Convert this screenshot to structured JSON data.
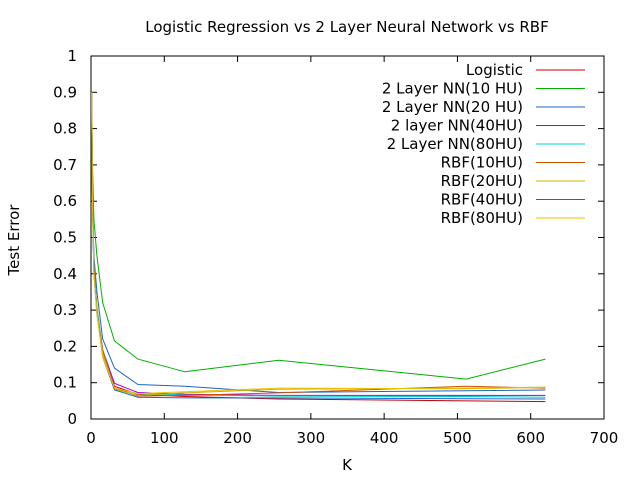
{
  "chart_data": {
    "type": "line",
    "title": "Logistic Regression vs 2 Layer Neural Network vs RBF",
    "xlabel": "K",
    "ylabel": "Test Error",
    "xlim": [
      0,
      700
    ],
    "ylim": [
      0,
      1
    ],
    "xticks": [
      0,
      100,
      200,
      300,
      400,
      500,
      600,
      700
    ],
    "yticks": [
      0,
      0.1,
      0.2,
      0.3,
      0.4,
      0.5,
      0.6,
      0.7,
      0.8,
      0.9,
      1
    ],
    "ytick_labels": [
      "0",
      "0.1",
      "0.2",
      "0.3",
      "0.4",
      "0.5",
      "0.6",
      "0.7",
      "0.8",
      "0.9",
      "1"
    ],
    "grid": false,
    "legend_position": "top-right",
    "x": [
      1,
      2,
      4,
      8,
      16,
      32,
      64,
      128,
      256,
      512,
      620
    ],
    "series": [
      {
        "name": "Logistic",
        "color": "#cc0000",
        "values": [
          0.9,
          0.62,
          0.43,
          0.3,
          0.18,
          0.09,
          0.068,
          0.062,
          0.055,
          0.05,
          0.048
        ]
      },
      {
        "name": "2 Layer NN(10 HU)",
        "color": "#00b000",
        "values": [
          0.9,
          0.7,
          0.55,
          0.45,
          0.32,
          0.215,
          0.165,
          0.13,
          0.162,
          0.11,
          0.165
        ]
      },
      {
        "name": "2 Layer NN(20 HU)",
        "color": "#1a66cc",
        "values": [
          0.9,
          0.6,
          0.45,
          0.35,
          0.22,
          0.14,
          0.095,
          0.09,
          0.073,
          0.078,
          0.08
        ]
      },
      {
        "name": "2 layer NN(40HU)",
        "color": "#aa00cc",
        "values": [
          0.9,
          0.58,
          0.4,
          0.3,
          0.19,
          0.098,
          0.073,
          0.068,
          0.065,
          0.065,
          0.065
        ]
      },
      {
        "name": "2 Layer NN(80HU)",
        "color": "#00cccc",
        "values": [
          0.9,
          0.6,
          0.42,
          0.31,
          0.19,
          0.083,
          0.07,
          0.066,
          0.063,
          0.062,
          0.06
        ]
      },
      {
        "name": "RBF(10HU)",
        "color": "#cc5500",
        "values": [
          0.9,
          0.62,
          0.42,
          0.3,
          0.19,
          0.085,
          0.063,
          0.065,
          0.072,
          0.09,
          0.085
        ]
      },
      {
        "name": "RBF(20HU)",
        "color": "#ccb300",
        "values": [
          0.9,
          0.6,
          0.41,
          0.3,
          0.18,
          0.082,
          0.065,
          0.072,
          0.082,
          0.085,
          0.088
        ]
      },
      {
        "name": "RBF(40HU)",
        "color": "#1a66cc",
        "values": [
          0.9,
          0.6,
          0.4,
          0.29,
          0.17,
          0.08,
          0.06,
          0.058,
          0.058,
          0.056,
          0.055
        ]
      },
      {
        "name": "RBF(80HU)",
        "color": "#f0c000",
        "values": [
          0.9,
          0.6,
          0.4,
          0.29,
          0.17,
          0.085,
          0.07,
          0.075,
          0.085,
          0.083,
          0.087
        ]
      }
    ]
  }
}
